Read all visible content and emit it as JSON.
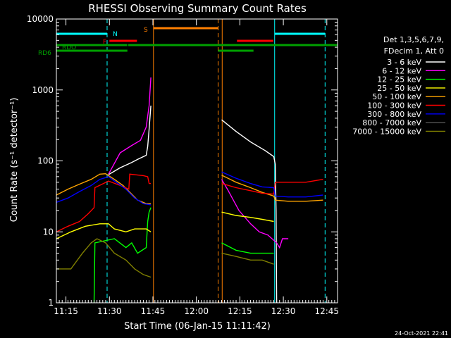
{
  "chart_data": {
    "type": "line",
    "title": "RHESSI Observing Summary Count Rates",
    "xlabel": "Start Time (06-Jan-15 11:11:42)",
    "ylabel": "Count Rate (s⁻¹ detector⁻¹)",
    "ylog": true,
    "ylim": [
      1,
      10000
    ],
    "xlim_minutes": [
      0,
      97
    ],
    "x_ticks": [
      {
        "label": "11:15",
        "m": 3.3
      },
      {
        "label": "11:30",
        "m": 18.3
      },
      {
        "label": "11:45",
        "m": 33.3
      },
      {
        "label": "12:00",
        "m": 48.3
      },
      {
        "label": "12:15",
        "m": 63.3
      },
      {
        "label": "12:30",
        "m": 78.3
      },
      {
        "label": "12:45",
        "m": 93.3
      }
    ],
    "y_ticks": [
      {
        "label": "1",
        "v": 1
      },
      {
        "label": "10",
        "v": 10
      },
      {
        "label": "100",
        "v": 100
      },
      {
        "label": "1000",
        "v": 1000
      },
      {
        "label": "10000",
        "v": 10000
      }
    ],
    "legend_header": [
      "Det 1,3,5,6,7,9,",
      "FDecim 1, Att 0"
    ],
    "series": [
      {
        "name": "3 - 6 keV",
        "color": "#ffffff",
        "segments": [
          [
            [
              18,
              64
            ],
            [
              22,
              80
            ],
            [
              26,
              95
            ],
            [
              28,
              105
            ],
            [
              31,
              120
            ],
            [
              31.5,
              160
            ],
            [
              32,
              280
            ],
            [
              32.6,
              600
            ]
          ],
          [
            [
              57,
              380
            ],
            [
              62,
              260
            ],
            [
              67,
              185
            ],
            [
              72,
              140
            ],
            [
              75,
              115
            ],
            [
              75.5,
              90
            ],
            [
              75.8,
              20
            ],
            [
              76,
              1
            ]
          ]
        ]
      },
      {
        "name": "6 - 12 keV",
        "color": "#ff00ff",
        "segments": [
          [
            [
              18,
              65
            ],
            [
              22,
              130
            ],
            [
              26,
              165
            ],
            [
              29,
              195
            ],
            [
              31,
              300
            ],
            [
              32,
              600
            ],
            [
              32.6,
              1500
            ]
          ],
          [
            [
              57,
              55
            ],
            [
              59,
              40
            ],
            [
              63,
              20
            ],
            [
              67,
              13
            ],
            [
              70,
              10
            ],
            [
              73,
              9
            ],
            [
              76,
              7
            ],
            [
              77,
              6
            ],
            [
              78,
              8
            ],
            [
              80,
              8
            ]
          ]
        ]
      },
      {
        "name": "12 - 25 keV",
        "color": "#00ff00",
        "segments": [
          [
            [
              13,
              1
            ],
            [
              13.3,
              7
            ],
            [
              20,
              8
            ],
            [
              24,
              6
            ],
            [
              26,
              7
            ],
            [
              28,
              5
            ],
            [
              31,
              6
            ],
            [
              31.5,
              14
            ],
            [
              32,
              19
            ],
            [
              32.6,
              22
            ]
          ],
          [
            [
              57,
              7
            ],
            [
              62,
              5.5
            ],
            [
              67,
              5
            ],
            [
              70,
              5
            ],
            [
              73,
              5
            ],
            [
              75,
              5
            ]
          ]
        ]
      },
      {
        "name": "25 - 50 keV",
        "color": "#ffff00",
        "segments": [
          [
            [
              0,
              8
            ],
            [
              5,
              10
            ],
            [
              10,
              12
            ],
            [
              15,
              13
            ],
            [
              18,
              13
            ],
            [
              20,
              11
            ],
            [
              24,
              10
            ],
            [
              27,
              11
            ],
            [
              31,
              11
            ],
            [
              32.6,
              10
            ]
          ],
          [
            [
              57,
              19
            ],
            [
              62,
              17
            ],
            [
              67,
              16
            ],
            [
              71,
              15
            ],
            [
              75,
              14
            ]
          ]
        ]
      },
      {
        "name": "50 - 100 keV",
        "color": "#ffa500",
        "segments": [
          [
            [
              0,
              33
            ],
            [
              4,
              40
            ],
            [
              8,
              47
            ],
            [
              12,
              55
            ],
            [
              15,
              65
            ],
            [
              17,
              66
            ],
            [
              20,
              55
            ],
            [
              23,
              45
            ],
            [
              26,
              34
            ],
            [
              28,
              28
            ],
            [
              31,
              25
            ],
            [
              32.6,
              25
            ]
          ],
          [
            [
              57,
              63
            ],
            [
              62,
              50
            ],
            [
              67,
              42
            ],
            [
              71,
              36
            ],
            [
              75,
              32
            ],
            [
              75.5,
              28
            ],
            [
              80,
              27
            ],
            [
              86,
              27
            ],
            [
              92,
              28
            ]
          ]
        ]
      },
      {
        "name": "100 - 300 keV",
        "color": "#ff0000",
        "segments": [
          [
            [
              0,
              10
            ],
            [
              4,
              12
            ],
            [
              8,
              14
            ],
            [
              11,
              18
            ],
            [
              13,
              22
            ],
            [
              13.3,
              42
            ],
            [
              18,
              52
            ],
            [
              22,
              45
            ],
            [
              25,
              40
            ],
            [
              25.3,
              65
            ],
            [
              30,
              62
            ],
            [
              31.5,
              60
            ],
            [
              32,
              48
            ],
            [
              32.6,
              48
            ]
          ],
          [
            [
              57,
              48
            ],
            [
              62,
              42
            ],
            [
              67,
              38
            ],
            [
              71,
              35
            ],
            [
              75,
              34
            ],
            [
              75.5,
              50
            ],
            [
              80,
              50
            ],
            [
              86,
              50
            ],
            [
              92,
              55
            ]
          ]
        ]
      },
      {
        "name": "300 - 800 keV",
        "color": "#0000ff",
        "segments": [
          [
            [
              0,
              26
            ],
            [
              4,
              30
            ],
            [
              8,
              37
            ],
            [
              12,
              45
            ],
            [
              15,
              55
            ],
            [
              18,
              60
            ],
            [
              20,
              52
            ],
            [
              24,
              40
            ],
            [
              27,
              30
            ],
            [
              30,
              25
            ],
            [
              32.6,
              24
            ]
          ],
          [
            [
              57,
              70
            ],
            [
              62,
              57
            ],
            [
              67,
              48
            ],
            [
              71,
              43
            ],
            [
              75,
              42
            ],
            [
              75.5,
              32
            ],
            [
              80,
              31
            ],
            [
              86,
              31
            ],
            [
              92,
              33
            ]
          ]
        ]
      },
      {
        "name": "800 - 7000 keV",
        "color": "#555555",
        "segments": []
      },
      {
        "name": "7000 - 15000 keV",
        "color": "#808000",
        "segments": [
          [
            [
              0,
              3
            ],
            [
              5,
              3
            ],
            [
              9,
              5
            ],
            [
              12,
              7
            ],
            [
              14,
              8
            ],
            [
              17,
              7
            ],
            [
              20,
              5
            ],
            [
              24,
              4
            ],
            [
              27,
              3
            ],
            [
              30,
              2.5
            ],
            [
              32.6,
              2.3
            ]
          ],
          [
            [
              57,
              5
            ],
            [
              62,
              4.5
            ],
            [
              67,
              4
            ],
            [
              71,
              4
            ],
            [
              75,
              3.5
            ]
          ]
        ]
      }
    ],
    "state_bars": [
      {
        "label": "N",
        "color": "#00ffff",
        "segments": [
          [
            0,
            17.5
          ],
          [
            75.3,
            92.7
          ]
        ]
      },
      {
        "label": "F",
        "color": "#ff0000",
        "segments": [
          [
            18.3,
            27.8
          ],
          [
            62.3,
            74.8
          ]
        ]
      },
      {
        "label": "S",
        "color": "#ff7f00",
        "segments": [
          [
            33.5,
            55.8
          ]
        ]
      },
      {
        "label": "RDO",
        "color": "#00a000",
        "segments": [
          [
            0,
            24.5
          ],
          [
            24.8,
            97
          ],
          [
            55.8,
            68
          ]
        ]
      },
      {
        "label": "RD6",
        "color": "#00a000",
        "segments": [
          [
            0,
            24.5
          ],
          [
            55.8,
            68
          ]
        ]
      }
    ],
    "vertical_markers": [
      {
        "m": 17.5,
        "color": "#00ffff",
        "dashed": true
      },
      {
        "m": 33.5,
        "color": "#ff7f00",
        "dashed": false
      },
      {
        "m": 55.8,
        "color": "#ff7f00",
        "dashed": true
      },
      {
        "m": 57.2,
        "color": "#ff7f00",
        "dashed": false
      },
      {
        "m": 75.3,
        "color": "#00ffff",
        "dashed": false
      },
      {
        "m": 92.7,
        "color": "#00ffff",
        "dashed": true
      }
    ]
  },
  "timestamp": "24-Oct-2021 22:41"
}
